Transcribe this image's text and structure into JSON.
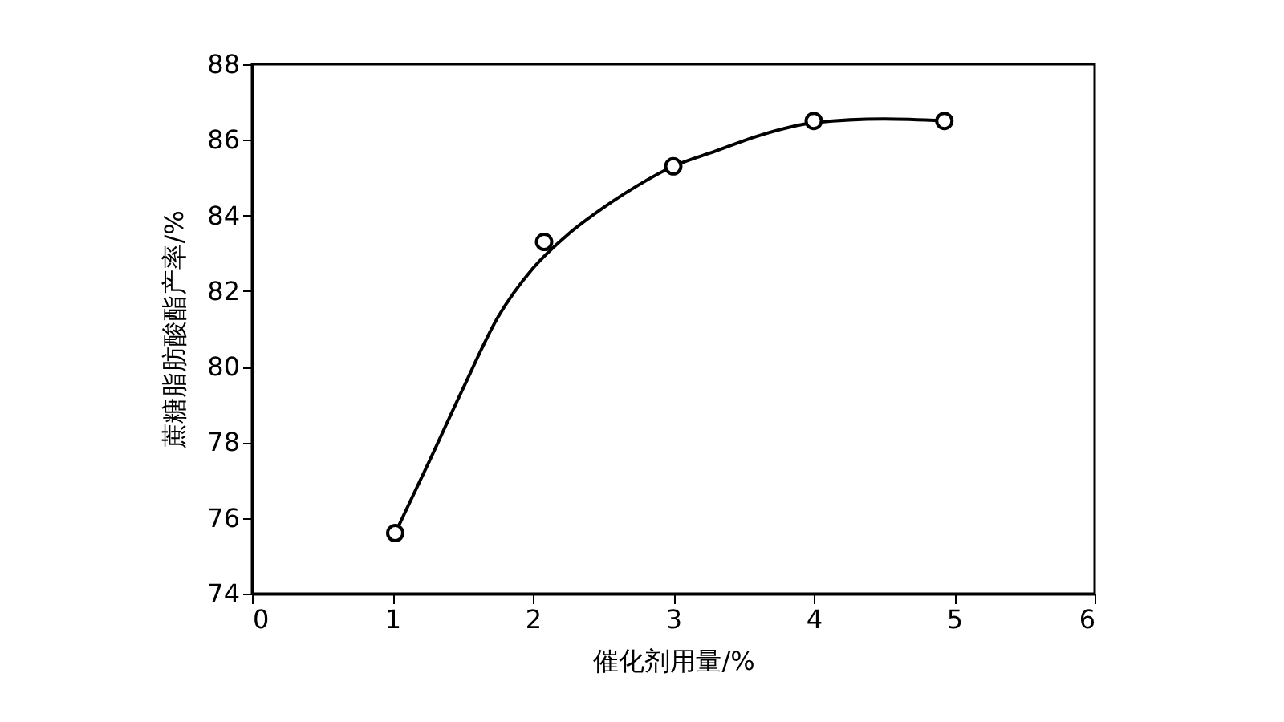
{
  "chart_data": {
    "type": "scatter",
    "xlabel": "催化剂用量/%",
    "ylabel": "蔗糖脂肪酸酯产率/%",
    "xlim": [
      0,
      6
    ],
    "xticks": [
      0,
      1,
      2,
      3,
      4,
      5,
      6
    ],
    "ylim": [
      74,
      88
    ],
    "yticks": [
      74,
      76,
      78,
      80,
      82,
      84,
      86,
      88
    ],
    "grid": false,
    "marker": "circle",
    "series": [
      {
        "color": "#000000",
        "x": [
          1.02,
          2.08,
          3,
          4,
          4.93
        ],
        "values": [
          75.6,
          83.3,
          85.3,
          86.5,
          86.5
        ]
      },
      {
        "type": "line",
        "color": "#000000",
        "marker": "none",
        "line_style": "solid",
        "x": [
          1.02,
          1.25,
          1.5,
          1.75,
          2.0,
          2.25,
          2.5,
          2.75,
          3.0,
          3.3,
          3.6,
          4.0,
          4.5,
          4.93
        ],
        "values": [
          75.6,
          77.4,
          79.4,
          81.3,
          82.6,
          83.5,
          84.2,
          84.8,
          85.3,
          85.7,
          86.1,
          86.45,
          86.55,
          86.5
        ]
      }
    ]
  }
}
